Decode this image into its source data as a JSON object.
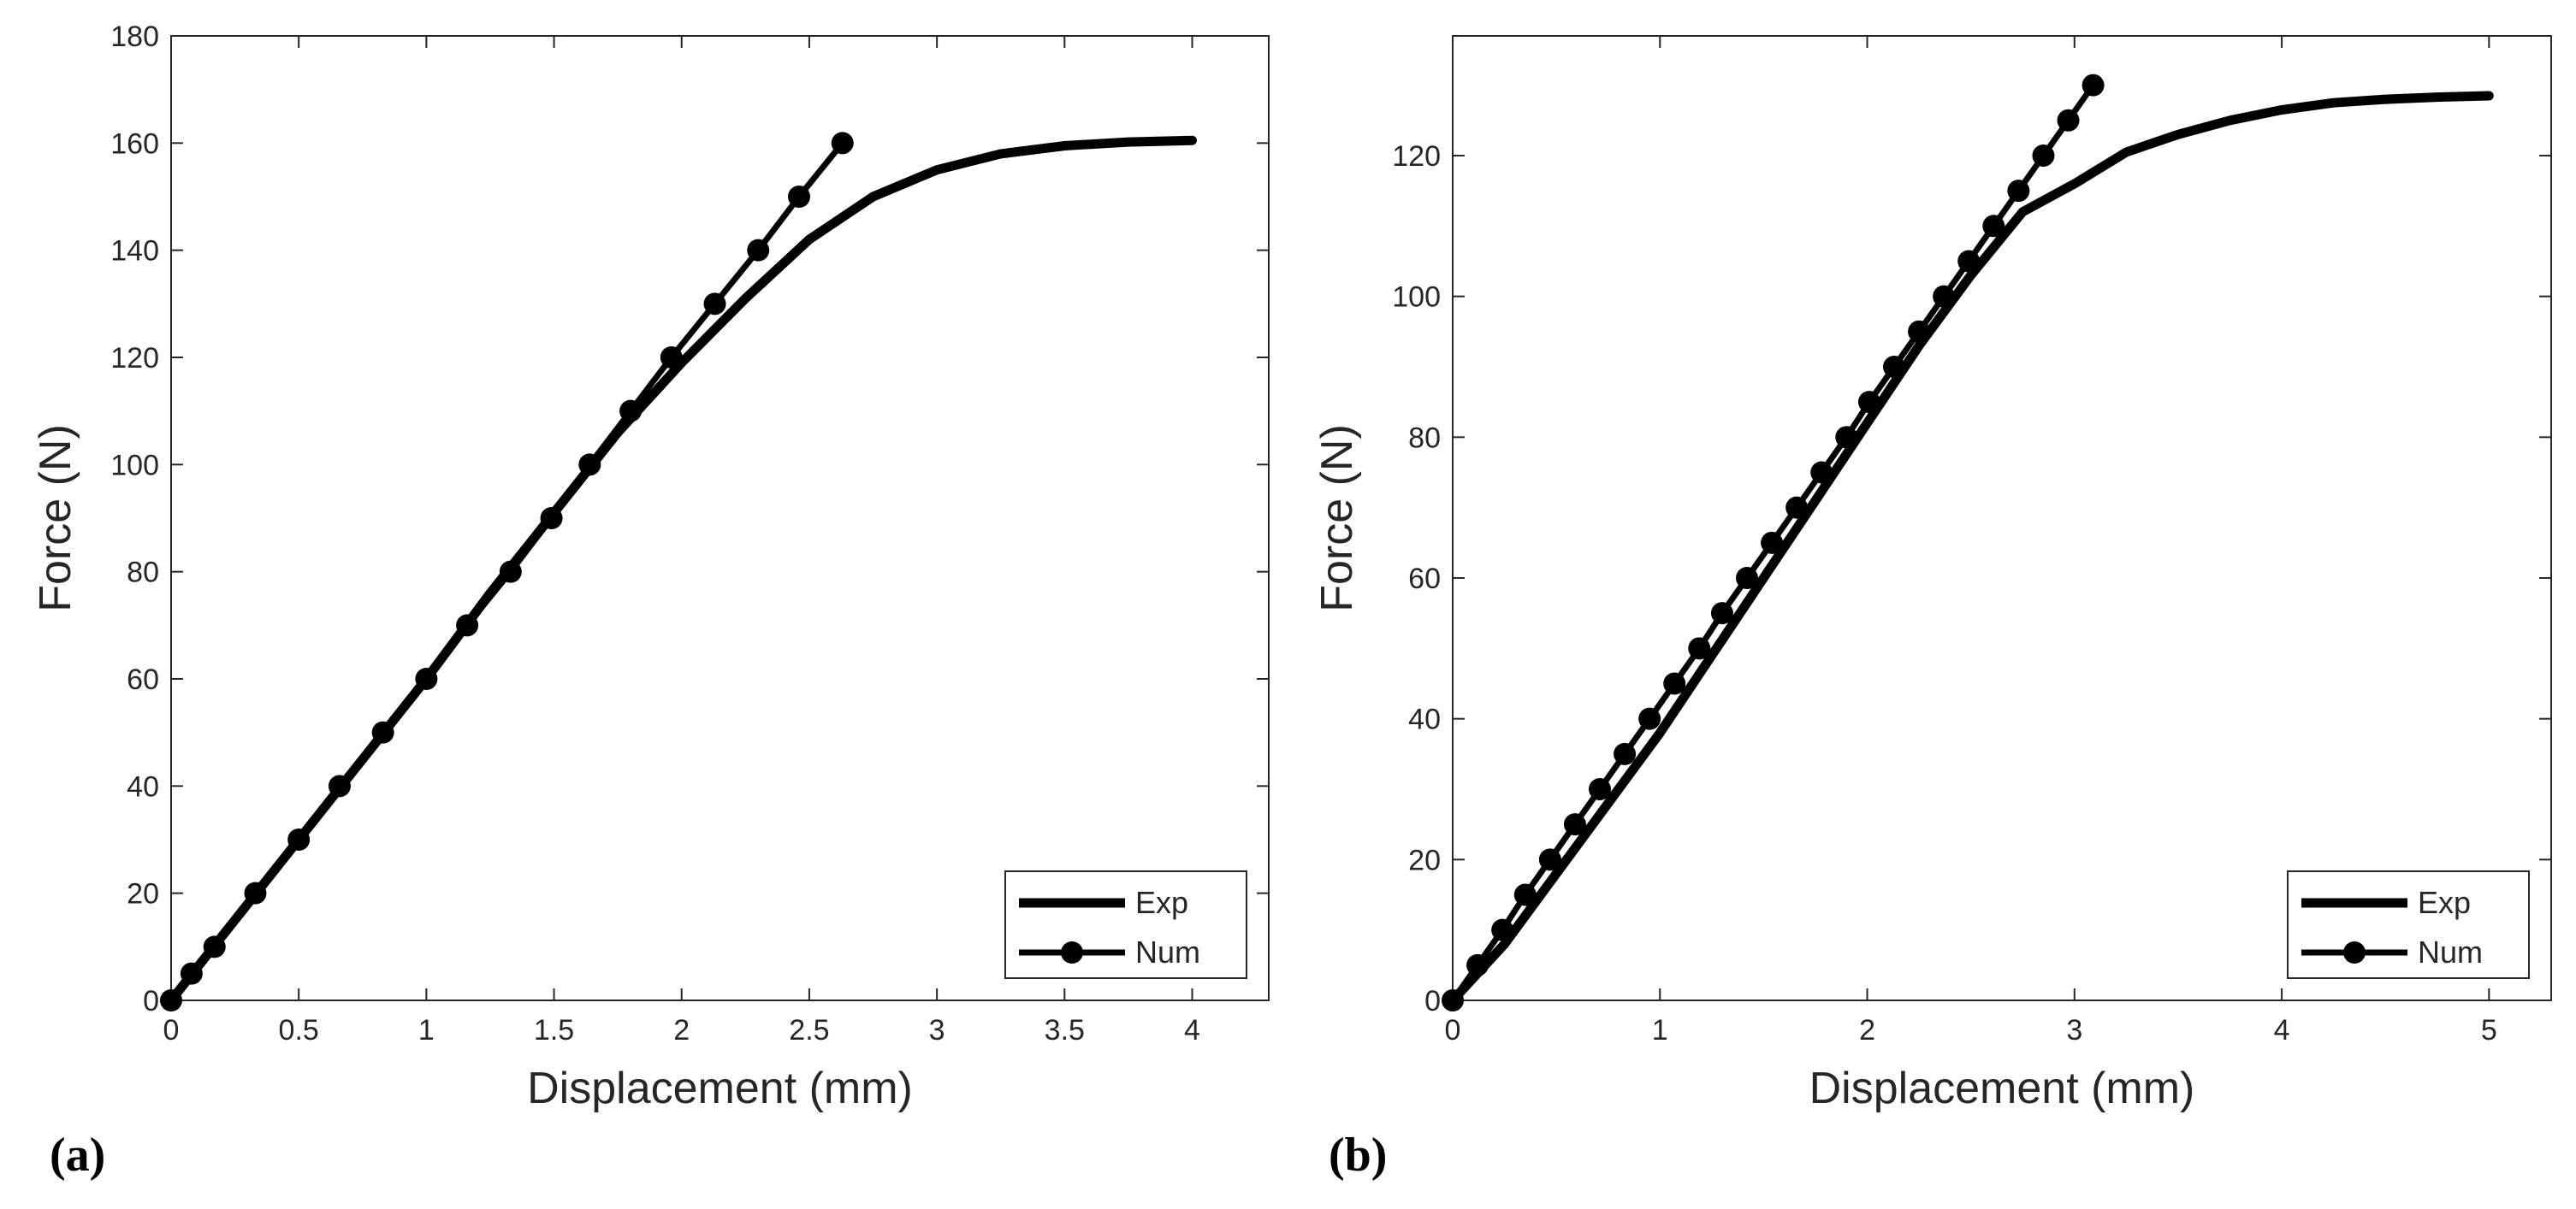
{
  "chart_data": [
    {
      "id": "a",
      "panel_label": "(a)",
      "type": "line",
      "xlabel": "Displacement (mm)",
      "ylabel": "Force (N)",
      "xlim": [
        0,
        4.3
      ],
      "ylim": [
        0,
        180
      ],
      "xticks": [
        0,
        0.5,
        1,
        1.5,
        2,
        2.5,
        3,
        3.5,
        4
      ],
      "xtick_labels": [
        "0",
        "0.5",
        "1",
        "1.5",
        "2",
        "2.5",
        "3",
        "3.5",
        "4"
      ],
      "yticks": [
        0,
        20,
        40,
        60,
        80,
        100,
        120,
        140,
        160,
        180
      ],
      "ytick_labels": [
        "0",
        "20",
        "40",
        "60",
        "80",
        "100",
        "120",
        "140",
        "160",
        "180"
      ],
      "legend": {
        "position": "bottom-right",
        "entries": [
          "Exp",
          "Num"
        ]
      },
      "series": [
        {
          "name": "Exp",
          "marker": "none",
          "x": [
            0,
            0.25,
            0.5,
            0.75,
            1.0,
            1.25,
            1.5,
            1.75,
            2.0,
            2.25,
            2.5,
            2.75,
            3.0,
            3.25,
            3.5,
            3.75,
            4.0
          ],
          "y": [
            0,
            15,
            30,
            45,
            60,
            76,
            91,
            106,
            119,
            131,
            142,
            150,
            155,
            158,
            159.5,
            160.2,
            160.5
          ]
        },
        {
          "name": "Num",
          "marker": "circle",
          "x": [
            0,
            0.08,
            0.17,
            0.33,
            0.5,
            0.66,
            0.83,
            1.0,
            1.16,
            1.33,
            1.49,
            1.64,
            1.8,
            1.96,
            2.13,
            2.3,
            2.46,
            2.63
          ],
          "y": [
            0,
            5,
            10,
            20,
            30,
            40,
            50,
            60,
            70,
            80,
            90,
            100,
            110,
            120,
            130,
            140,
            150,
            160
          ]
        }
      ]
    },
    {
      "id": "b",
      "panel_label": "(b)",
      "type": "line",
      "xlabel": "Displacement (mm)",
      "ylabel": "Force (N)",
      "xlim": [
        0,
        5.3
      ],
      "ylim": [
        0,
        137
      ],
      "xticks": [
        0,
        1,
        2,
        3,
        4,
        5
      ],
      "xtick_labels": [
        "0",
        "1",
        "2",
        "3",
        "4",
        "5"
      ],
      "yticks": [
        0,
        20,
        40,
        60,
        80,
        100,
        120
      ],
      "ytick_labels": [
        "0",
        "20",
        "40",
        "60",
        "80",
        "100",
        "120"
      ],
      "legend": {
        "position": "bottom-right",
        "entries": [
          "Exp",
          "Num"
        ]
      },
      "series": [
        {
          "name": "Exp",
          "marker": "none",
          "x": [
            0,
            0.25,
            0.5,
            0.75,
            1.0,
            1.25,
            1.5,
            1.75,
            2.0,
            2.25,
            2.5,
            2.75,
            3.0,
            3.25,
            3.5,
            3.75,
            4.0,
            4.25,
            4.5,
            4.75,
            5.0
          ],
          "y": [
            0,
            8,
            18,
            28,
            38,
            49,
            60,
            71,
            82,
            93,
            103,
            112,
            116,
            120.5,
            123,
            125,
            126.5,
            127.5,
            128,
            128.3,
            128.5
          ]
        },
        {
          "name": "Num",
          "marker": "circle",
          "x": [
            0,
            0.12,
            0.24,
            0.35,
            0.47,
            0.59,
            0.71,
            0.83,
            0.95,
            1.07,
            1.19,
            1.3,
            1.42,
            1.54,
            1.66,
            1.78,
            1.9,
            2.01,
            2.13,
            2.25,
            2.37,
            2.49,
            2.61,
            2.73,
            2.85,
            2.97,
            3.09
          ],
          "y": [
            0,
            5,
            10,
            15,
            20,
            25,
            30,
            35,
            40,
            45,
            50,
            55,
            60,
            65,
            70,
            75,
            80,
            85,
            90,
            95,
            100,
            105,
            110,
            115,
            120,
            125,
            130
          ]
        }
      ]
    }
  ]
}
